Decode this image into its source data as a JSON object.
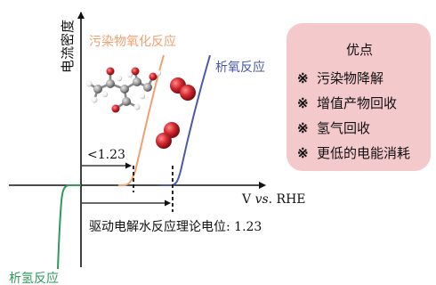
{
  "axis": {
    "y_label": "电流密度",
    "x_label": {
      "prefix": "V ",
      "italic": "vs",
      "suffix": ". RHE"
    }
  },
  "curves": {
    "organic_oxidation": {
      "label": "污染物氧化反应",
      "color": "#f0a070"
    },
    "oer": {
      "label": "析氧反应",
      "color": "#4a5aa8"
    },
    "her": {
      "label": "析氢反应",
      "color": "#2e9a5c"
    }
  },
  "annotations": {
    "lower_potential": "<1.23",
    "drive_potential": "驱动电解水反应理论电位: 1.23"
  },
  "advantages": {
    "title": "优点",
    "bullet": "※",
    "items": [
      "污染物降解",
      "增值产物回收",
      "氢气回收",
      "更低的电能消耗"
    ],
    "background": "#f3c9cc"
  },
  "colors": {
    "axis": "#111111",
    "oxygen_atom": "#d0252c",
    "carbon_atom": "#9a9a9a",
    "hydrogen_atom": "#ffffff"
  }
}
